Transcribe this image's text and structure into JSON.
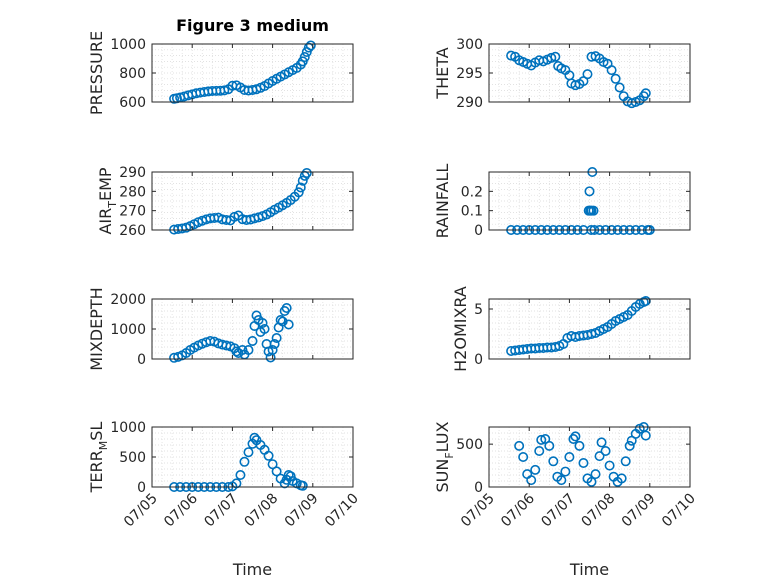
{
  "chart_data": [
    {
      "type": "scatter",
      "id": "pressure",
      "title": "Figure 3 medium",
      "ylabel": "PRESSURE",
      "ylabel_sub": "",
      "ylabel_tail": "",
      "ylim": [
        600,
        1000
      ],
      "yticks": [
        600,
        800,
        1000
      ],
      "xlim": [
        0,
        5
      ],
      "xticks": [],
      "grid": true,
      "points": [
        [
          0.55,
          622
        ],
        [
          0.62,
          626
        ],
        [
          0.7,
          631
        ],
        [
          0.8,
          638
        ],
        [
          0.9,
          646
        ],
        [
          1.0,
          653
        ],
        [
          1.1,
          660
        ],
        [
          1.2,
          665
        ],
        [
          1.3,
          669
        ],
        [
          1.4,
          673
        ],
        [
          1.5,
          676
        ],
        [
          1.6,
          677
        ],
        [
          1.7,
          678
        ],
        [
          1.8,
          680
        ],
        [
          1.9,
          688
        ],
        [
          2.0,
          712
        ],
        [
          2.1,
          715
        ],
        [
          2.2,
          700
        ],
        [
          2.3,
          683
        ],
        [
          2.4,
          679
        ],
        [
          2.5,
          683
        ],
        [
          2.6,
          688
        ],
        [
          2.7,
          698
        ],
        [
          2.8,
          710
        ],
        [
          2.9,
          728
        ],
        [
          3.0,
          745
        ],
        [
          3.1,
          760
        ],
        [
          3.2,
          775
        ],
        [
          3.3,
          790
        ],
        [
          3.4,
          805
        ],
        [
          3.5,
          820
        ],
        [
          3.6,
          835
        ],
        [
          3.7,
          858
        ],
        [
          3.75,
          880
        ],
        [
          3.8,
          910
        ],
        [
          3.85,
          945
        ],
        [
          3.9,
          975
        ],
        [
          3.95,
          990
        ]
      ]
    },
    {
      "type": "scatter",
      "id": "theta",
      "title": "",
      "ylabel": "THETA",
      "ylabel_sub": "",
      "ylabel_tail": "",
      "ylim": [
        290,
        300
      ],
      "yticks": [
        290,
        295,
        300
      ],
      "xlim": [
        0,
        5
      ],
      "xticks": [],
      "grid": true,
      "points": [
        [
          0.55,
          298
        ],
        [
          0.65,
          297.8
        ],
        [
          0.75,
          297.2
        ],
        [
          0.85,
          296.9
        ],
        [
          0.95,
          296.6
        ],
        [
          1.05,
          296.3
        ],
        [
          1.15,
          296.8
        ],
        [
          1.25,
          297.2
        ],
        [
          1.35,
          297.0
        ],
        [
          1.45,
          297.3
        ],
        [
          1.55,
          297.6
        ],
        [
          1.65,
          297.8
        ],
        [
          1.72,
          296.2
        ],
        [
          1.8,
          295.8
        ],
        [
          1.9,
          295.5
        ],
        [
          2.0,
          294.6
        ],
        [
          2.05,
          293.2
        ],
        [
          2.15,
          292.9
        ],
        [
          2.25,
          293.1
        ],
        [
          2.35,
          293.6
        ],
        [
          2.45,
          294.8
        ],
        [
          2.55,
          297.8
        ],
        [
          2.65,
          297.9
        ],
        [
          2.75,
          297.5
        ],
        [
          2.85,
          296.9
        ],
        [
          2.95,
          296.6
        ],
        [
          3.05,
          295.5
        ],
        [
          3.15,
          294.0
        ],
        [
          3.25,
          292.5
        ],
        [
          3.35,
          291.0
        ],
        [
          3.45,
          290.1
        ],
        [
          3.55,
          289.8
        ],
        [
          3.65,
          290.0
        ],
        [
          3.75,
          290.3
        ],
        [
          3.85,
          291.0
        ],
        [
          3.9,
          291.5
        ]
      ]
    },
    {
      "type": "scatter",
      "id": "air_temp",
      "title": "",
      "ylabel": "AIR",
      "ylabel_sub": "T",
      "ylabel_tail": "EMP",
      "ylim": [
        260,
        290
      ],
      "yticks": [
        260,
        270,
        280,
        290
      ],
      "xlim": [
        0,
        5
      ],
      "xticks": [],
      "grid": true,
      "points": [
        [
          0.55,
          260.2
        ],
        [
          0.65,
          260.5
        ],
        [
          0.75,
          260.8
        ],
        [
          0.85,
          261.2
        ],
        [
          0.95,
          262.0
        ],
        [
          1.05,
          263.0
        ],
        [
          1.15,
          264.0
        ],
        [
          1.25,
          264.8
        ],
        [
          1.35,
          265.5
        ],
        [
          1.45,
          266.0
        ],
        [
          1.55,
          266.2
        ],
        [
          1.65,
          266.4
        ],
        [
          1.75,
          265.5
        ],
        [
          1.85,
          265.2
        ],
        [
          1.95,
          265.0
        ],
        [
          2.05,
          266.8
        ],
        [
          2.15,
          267.5
        ],
        [
          2.25,
          265.6
        ],
        [
          2.35,
          265.2
        ],
        [
          2.45,
          265.4
        ],
        [
          2.55,
          266.0
        ],
        [
          2.65,
          266.5
        ],
        [
          2.75,
          267.2
        ],
        [
          2.85,
          268.0
        ],
        [
          2.95,
          269.2
        ],
        [
          3.05,
          270.5
        ],
        [
          3.15,
          271.6
        ],
        [
          3.25,
          272.8
        ],
        [
          3.35,
          274.0
        ],
        [
          3.45,
          275.5
        ],
        [
          3.55,
          277.2
        ],
        [
          3.65,
          279.5
        ],
        [
          3.7,
          282.0
        ],
        [
          3.75,
          285.5
        ],
        [
          3.8,
          288.0
        ],
        [
          3.85,
          289.5
        ]
      ]
    },
    {
      "type": "scatter",
      "id": "rainfall",
      "title": "",
      "ylabel": "RAINFALL",
      "ylabel_sub": "",
      "ylabel_tail": "",
      "ylim": [
        0,
        0.3
      ],
      "yticks": [
        0,
        0.1,
        0.2
      ],
      "xlim": [
        0,
        5
      ],
      "xticks": [],
      "grid": true,
      "points": [
        [
          0.55,
          0
        ],
        [
          0.7,
          0
        ],
        [
          0.85,
          0
        ],
        [
          1.0,
          0
        ],
        [
          1.15,
          0
        ],
        [
          1.3,
          0
        ],
        [
          1.45,
          0
        ],
        [
          1.6,
          0
        ],
        [
          1.75,
          0
        ],
        [
          1.9,
          0
        ],
        [
          2.05,
          0
        ],
        [
          2.2,
          0
        ],
        [
          2.35,
          0
        ],
        [
          2.48,
          0.1
        ],
        [
          2.5,
          0.2
        ],
        [
          2.52,
          0.1
        ],
        [
          2.54,
          0
        ],
        [
          2.55,
          0.1
        ],
        [
          2.57,
          0.3
        ],
        [
          2.6,
          0.1
        ],
        [
          2.62,
          0
        ],
        [
          2.75,
          0
        ],
        [
          2.9,
          0
        ],
        [
          3.05,
          0
        ],
        [
          3.2,
          0
        ],
        [
          3.35,
          0
        ],
        [
          3.5,
          0
        ],
        [
          3.65,
          0
        ],
        [
          3.8,
          0
        ],
        [
          3.95,
          0
        ],
        [
          4.0,
          0
        ]
      ]
    },
    {
      "type": "scatter",
      "id": "mixdepth",
      "title": "",
      "ylabel": "MIXDEPTH",
      "ylabel_sub": "",
      "ylabel_tail": "",
      "ylim": [
        0,
        2000
      ],
      "yticks": [
        0,
        1000,
        2000
      ],
      "xlim": [
        0,
        5
      ],
      "xticks": [],
      "grid": true,
      "points": [
        [
          0.55,
          40
        ],
        [
          0.65,
          70
        ],
        [
          0.75,
          120
        ],
        [
          0.85,
          200
        ],
        [
          0.95,
          300
        ],
        [
          1.05,
          380
        ],
        [
          1.15,
          450
        ],
        [
          1.25,
          510
        ],
        [
          1.35,
          560
        ],
        [
          1.45,
          600
        ],
        [
          1.55,
          580
        ],
        [
          1.65,
          520
        ],
        [
          1.75,
          480
        ],
        [
          1.85,
          450
        ],
        [
          1.95,
          420
        ],
        [
          2.05,
          360
        ],
        [
          2.1,
          250
        ],
        [
          2.15,
          200
        ],
        [
          2.25,
          300
        ],
        [
          2.3,
          150
        ],
        [
          2.4,
          300
        ],
        [
          2.5,
          600
        ],
        [
          2.55,
          1100
        ],
        [
          2.6,
          1450
        ],
        [
          2.65,
          1300
        ],
        [
          2.7,
          900
        ],
        [
          2.75,
          1200
        ],
        [
          2.8,
          1000
        ],
        [
          2.85,
          500
        ],
        [
          2.9,
          250
        ],
        [
          2.95,
          50
        ],
        [
          3.0,
          300
        ],
        [
          3.05,
          500
        ],
        [
          3.1,
          700
        ],
        [
          3.15,
          1050
        ],
        [
          3.2,
          1300
        ],
        [
          3.25,
          1250
        ],
        [
          3.3,
          1600
        ],
        [
          3.35,
          1700
        ],
        [
          3.4,
          1150
        ]
      ]
    },
    {
      "type": "scatter",
      "id": "h2omixra",
      "title": "",
      "ylabel": "H2OMIXRA",
      "ylabel_sub": "",
      "ylabel_tail": "",
      "ylim": [
        0,
        6
      ],
      "yticks": [
        0,
        5
      ],
      "xlim": [
        0,
        5
      ],
      "xticks": [],
      "grid": true,
      "points": [
        [
          0.55,
          0.8
        ],
        [
          0.65,
          0.85
        ],
        [
          0.75,
          0.9
        ],
        [
          0.85,
          0.95
        ],
        [
          0.95,
          1.0
        ],
        [
          1.05,
          1.05
        ],
        [
          1.15,
          1.05
        ],
        [
          1.25,
          1.1
        ],
        [
          1.35,
          1.1
        ],
        [
          1.45,
          1.15
        ],
        [
          1.55,
          1.15
        ],
        [
          1.65,
          1.2
        ],
        [
          1.75,
          1.3
        ],
        [
          1.85,
          1.5
        ],
        [
          1.95,
          2.1
        ],
        [
          2.05,
          2.3
        ],
        [
          2.15,
          2.2
        ],
        [
          2.25,
          2.3
        ],
        [
          2.35,
          2.35
        ],
        [
          2.45,
          2.4
        ],
        [
          2.55,
          2.5
        ],
        [
          2.65,
          2.6
        ],
        [
          2.75,
          2.8
        ],
        [
          2.85,
          3.0
        ],
        [
          2.95,
          3.2
        ],
        [
          3.05,
          3.5
        ],
        [
          3.15,
          3.8
        ],
        [
          3.25,
          4.0
        ],
        [
          3.35,
          4.2
        ],
        [
          3.45,
          4.4
        ],
        [
          3.55,
          4.8
        ],
        [
          3.65,
          5.2
        ],
        [
          3.75,
          5.5
        ],
        [
          3.85,
          5.7
        ],
        [
          3.9,
          5.8
        ]
      ]
    },
    {
      "type": "scatter",
      "id": "terr_msl",
      "title": "",
      "ylabel": "TERR",
      "ylabel_sub": "M",
      "ylabel_tail": "SL",
      "ylim": [
        0,
        1000
      ],
      "yticks": [
        0,
        500,
        1000
      ],
      "xlim": [
        0,
        5
      ],
      "xticks": [
        "07/05",
        "07/06",
        "07/07",
        "07/08",
        "07/09",
        "07/10"
      ],
      "xlabel": "Time",
      "grid": true,
      "points": [
        [
          0.55,
          0
        ],
        [
          0.7,
          0
        ],
        [
          0.85,
          0
        ],
        [
          1.0,
          0
        ],
        [
          1.15,
          0
        ],
        [
          1.3,
          0
        ],
        [
          1.45,
          0
        ],
        [
          1.6,
          0
        ],
        [
          1.75,
          0
        ],
        [
          1.9,
          0
        ],
        [
          2.0,
          10
        ],
        [
          2.1,
          60
        ],
        [
          2.2,
          200
        ],
        [
          2.3,
          420
        ],
        [
          2.4,
          580
        ],
        [
          2.5,
          720
        ],
        [
          2.55,
          820
        ],
        [
          2.6,
          780
        ],
        [
          2.7,
          700
        ],
        [
          2.8,
          620
        ],
        [
          2.9,
          520
        ],
        [
          3.0,
          380
        ],
        [
          3.1,
          260
        ],
        [
          3.2,
          140
        ],
        [
          3.3,
          60
        ],
        [
          3.35,
          120
        ],
        [
          3.4,
          200
        ],
        [
          3.45,
          180
        ],
        [
          3.5,
          100
        ],
        [
          3.6,
          60
        ],
        [
          3.7,
          30
        ],
        [
          3.75,
          20
        ]
      ]
    },
    {
      "type": "scatter",
      "id": "sun_flux",
      "title": "",
      "ylabel": "SUN",
      "ylabel_sub": "F",
      "ylabel_tail": "LUX",
      "ylim": [
        0,
        700
      ],
      "yticks": [
        0,
        500
      ],
      "xlim": [
        0,
        5
      ],
      "xticks": [
        "07/05",
        "07/06",
        "07/07",
        "07/08",
        "07/09",
        "07/10"
      ],
      "xlabel": "Time",
      "grid": true,
      "points": [
        [
          0.75,
          480
        ],
        [
          0.85,
          350
        ],
        [
          0.95,
          150
        ],
        [
          1.05,
          80
        ],
        [
          1.15,
          200
        ],
        [
          1.25,
          420
        ],
        [
          1.3,
          550
        ],
        [
          1.4,
          560
        ],
        [
          1.5,
          480
        ],
        [
          1.6,
          300
        ],
        [
          1.7,
          120
        ],
        [
          1.8,
          80
        ],
        [
          1.9,
          180
        ],
        [
          2.0,
          350
        ],
        [
          2.1,
          560
        ],
        [
          2.15,
          590
        ],
        [
          2.25,
          480
        ],
        [
          2.35,
          280
        ],
        [
          2.45,
          100
        ],
        [
          2.55,
          60
        ],
        [
          2.65,
          150
        ],
        [
          2.75,
          360
        ],
        [
          2.8,
          520
        ],
        [
          2.9,
          420
        ],
        [
          3.0,
          250
        ],
        [
          3.1,
          120
        ],
        [
          3.2,
          60
        ],
        [
          3.3,
          100
        ],
        [
          3.4,
          300
        ],
        [
          3.5,
          480
        ],
        [
          3.55,
          540
        ],
        [
          3.65,
          620
        ],
        [
          3.75,
          680
        ],
        [
          3.85,
          700
        ],
        [
          3.9,
          600
        ]
      ]
    }
  ]
}
